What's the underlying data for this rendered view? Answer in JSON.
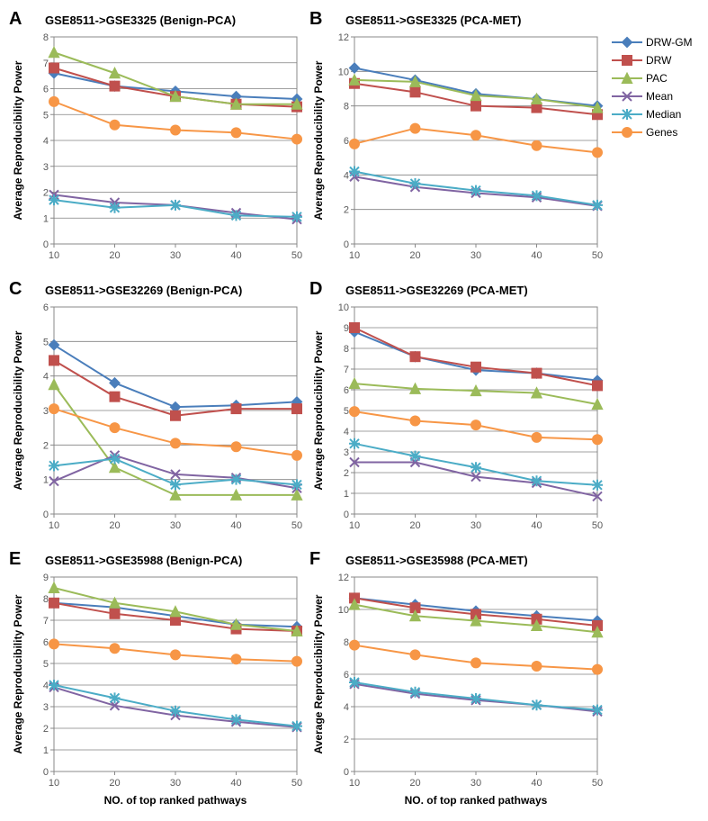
{
  "legend": [
    {
      "label": "DRW-GM",
      "color": "#4a7ebb",
      "marker": "diamond"
    },
    {
      "label": "DRW",
      "color": "#c0504d",
      "marker": "square"
    },
    {
      "label": "PAC",
      "color": "#9bbb59",
      "marker": "triangle"
    },
    {
      "label": "Mean",
      "color": "#8064a2",
      "marker": "x"
    },
    {
      "label": "Median",
      "color": "#4bacc6",
      "marker": "star"
    },
    {
      "label": "Genes",
      "color": "#f79646",
      "marker": "circle"
    }
  ],
  "axes": {
    "xlabel": "NO. of top ranked pathways",
    "ylabel": "Average Reproducibility Power",
    "label_fontsize": 12,
    "tick_fontsize": 11,
    "x_ticks": [
      10,
      20,
      30,
      40,
      50
    ],
    "line_width": 2,
    "marker_size": 5,
    "plot_bg": "#ffffff",
    "outer_bg": "#ffffff",
    "grid_color": "#808080",
    "axis_color": "#888888"
  },
  "panels": [
    {
      "letter": "A",
      "title": "GSE8511->GSE3325 (Benign-PCA)",
      "ylim": [
        0,
        8
      ],
      "ystep": 1,
      "show_xlabel": false,
      "series": {
        "DRW-GM": [
          6.6,
          6.1,
          5.9,
          5.7,
          5.6
        ],
        "DRW": [
          6.8,
          6.1,
          5.7,
          5.4,
          5.3
        ],
        "PAC": [
          7.4,
          6.6,
          5.7,
          5.4,
          5.4
        ],
        "Mean": [
          1.9,
          1.6,
          1.5,
          1.2,
          0.95
        ],
        "Median": [
          1.7,
          1.4,
          1.5,
          1.1,
          1.05
        ],
        "Genes": [
          5.5,
          4.6,
          4.4,
          4.3,
          4.05
        ]
      }
    },
    {
      "letter": "B",
      "title": "GSE8511->GSE3325 (PCA-MET)",
      "ylim": [
        0,
        12
      ],
      "ystep": 2,
      "show_xlabel": false,
      "series": {
        "DRW-GM": [
          10.2,
          9.5,
          8.7,
          8.4,
          8.0
        ],
        "DRW": [
          9.3,
          8.8,
          8.0,
          7.9,
          7.5
        ],
        "PAC": [
          9.5,
          9.4,
          8.6,
          8.4,
          7.9
        ],
        "Mean": [
          3.9,
          3.3,
          2.95,
          2.7,
          2.2
        ],
        "Median": [
          4.2,
          3.5,
          3.1,
          2.8,
          2.25
        ],
        "Genes": [
          5.8,
          6.7,
          6.3,
          5.7,
          5.3
        ]
      }
    },
    {
      "letter": "C",
      "title": "GSE8511->GSE32269 (Benign-PCA)",
      "ylim": [
        0,
        6
      ],
      "ystep": 1,
      "show_xlabel": false,
      "series": {
        "DRW-GM": [
          4.9,
          3.8,
          3.1,
          3.15,
          3.25
        ],
        "DRW": [
          4.45,
          3.4,
          2.85,
          3.05,
          3.05
        ],
        "PAC": [
          3.75,
          1.35,
          0.55,
          0.55,
          0.55
        ],
        "Mean": [
          0.95,
          1.7,
          1.15,
          1.05,
          0.75
        ],
        "Median": [
          1.4,
          1.6,
          0.85,
          1.0,
          0.85
        ],
        "Genes": [
          3.05,
          2.5,
          2.05,
          1.95,
          1.7
        ]
      }
    },
    {
      "letter": "D",
      "title": "GSE8511->GSE32269 (PCA-MET)",
      "ylim": [
        0,
        10
      ],
      "ystep": 1,
      "show_xlabel": false,
      "series": {
        "DRW-GM": [
          8.8,
          7.6,
          6.95,
          6.8,
          6.45
        ],
        "DRW": [
          9.0,
          7.6,
          7.1,
          6.8,
          6.2
        ],
        "PAC": [
          6.3,
          6.05,
          5.95,
          5.85,
          5.3
        ],
        "Mean": [
          2.5,
          2.5,
          1.8,
          1.5,
          0.85
        ],
        "Median": [
          3.4,
          2.8,
          2.25,
          1.6,
          1.4
        ],
        "Genes": [
          4.95,
          4.5,
          4.3,
          3.7,
          3.6
        ]
      }
    },
    {
      "letter": "E",
      "title": "GSE8511->GSE35988 (Benign-PCA)",
      "ylim": [
        0,
        9
      ],
      "ystep": 1,
      "show_xlabel": true,
      "series": {
        "DRW-GM": [
          7.8,
          7.6,
          7.2,
          6.8,
          6.7
        ],
        "DRW": [
          7.8,
          7.3,
          7.0,
          6.6,
          6.5
        ],
        "PAC": [
          8.5,
          7.8,
          7.4,
          6.8,
          6.5
        ],
        "Mean": [
          3.9,
          3.05,
          2.6,
          2.3,
          2.05
        ],
        "Median": [
          4.0,
          3.4,
          2.8,
          2.4,
          2.1
        ],
        "Genes": [
          5.9,
          5.7,
          5.4,
          5.2,
          5.1
        ]
      }
    },
    {
      "letter": "F",
      "title": "GSE8511->GSE35988 (PCA-MET)",
      "ylim": [
        0,
        12
      ],
      "ystep": 2,
      "show_xlabel": true,
      "series": {
        "DRW-GM": [
          10.7,
          10.3,
          9.9,
          9.6,
          9.3
        ],
        "DRW": [
          10.7,
          10.1,
          9.7,
          9.4,
          9.0
        ],
        "PAC": [
          10.3,
          9.6,
          9.3,
          9.0,
          8.6
        ],
        "Mean": [
          5.4,
          4.8,
          4.4,
          4.1,
          3.7
        ],
        "Median": [
          5.5,
          4.9,
          4.5,
          4.1,
          3.8
        ],
        "Genes": [
          7.8,
          7.2,
          6.7,
          6.5,
          6.3
        ]
      }
    }
  ]
}
